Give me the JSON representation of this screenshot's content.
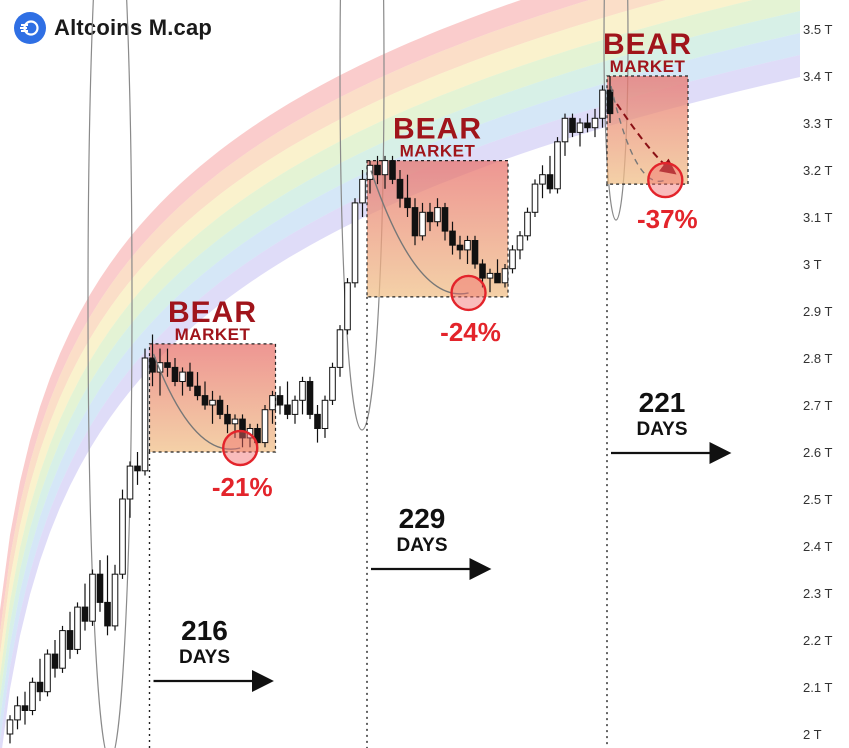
{
  "header": {
    "title": "Altcoins  M.cap",
    "icon": "altcoin-logo-icon",
    "brand_color": "#2f6fe4"
  },
  "colors": {
    "up": "#ffffff",
    "down": "#111111",
    "bear_box_top": "#e8736e",
    "bear_box_bottom": "#f0c18a",
    "bear_label": "#a0141b",
    "drawdown": "#e3242b",
    "rainbow": [
      "#f5a3a3",
      "#f7c39a",
      "#f5e7a4",
      "#cdeab1",
      "#b6e3d4",
      "#b3d4f0",
      "#c4c0f2"
    ]
  },
  "chart_data": {
    "type": "candlestick",
    "title": "",
    "y_unit": "T",
    "ylim": [
      2.0,
      3.5
    ],
    "y_ticks": [
      "3.5 T",
      "3.4 T",
      "3.3 T",
      "3.2 T",
      "3.1 T",
      "3 T",
      "2.9 T",
      "2.8 T",
      "2.7 T",
      "2.6 T",
      "2.5 T",
      "2.4 T",
      "2.3 T",
      "2.2 T",
      "2.1 T",
      "2 T"
    ],
    "candles": [
      [
        2.0,
        2.04,
        1.98,
        2.03
      ],
      [
        2.03,
        2.08,
        2.01,
        2.06
      ],
      [
        2.06,
        2.09,
        2.02,
        2.05
      ],
      [
        2.05,
        2.12,
        2.04,
        2.11
      ],
      [
        2.11,
        2.16,
        2.07,
        2.09
      ],
      [
        2.09,
        2.18,
        2.08,
        2.17
      ],
      [
        2.17,
        2.2,
        2.12,
        2.14
      ],
      [
        2.14,
        2.23,
        2.13,
        2.22
      ],
      [
        2.22,
        2.26,
        2.16,
        2.18
      ],
      [
        2.18,
        2.28,
        2.17,
        2.27
      ],
      [
        2.27,
        2.32,
        2.22,
        2.24
      ],
      [
        2.24,
        2.35,
        2.23,
        2.34
      ],
      [
        2.34,
        2.37,
        2.26,
        2.28
      ],
      [
        2.28,
        2.38,
        2.21,
        2.23
      ],
      [
        2.23,
        2.36,
        2.22,
        2.34
      ],
      [
        2.34,
        2.52,
        2.33,
        2.5
      ],
      [
        2.5,
        2.58,
        2.46,
        2.57
      ],
      [
        2.57,
        2.6,
        2.53,
        2.56
      ],
      [
        2.56,
        2.82,
        2.55,
        2.8
      ],
      [
        2.8,
        2.85,
        2.74,
        2.77
      ],
      [
        2.77,
        2.82,
        2.72,
        2.79
      ],
      [
        2.79,
        2.82,
        2.76,
        2.78
      ],
      [
        2.78,
        2.8,
        2.74,
        2.75
      ],
      [
        2.75,
        2.78,
        2.72,
        2.77
      ],
      [
        2.77,
        2.79,
        2.73,
        2.74
      ],
      [
        2.74,
        2.77,
        2.71,
        2.72
      ],
      [
        2.72,
        2.75,
        2.69,
        2.7
      ],
      [
        2.7,
        2.73,
        2.66,
        2.71
      ],
      [
        2.71,
        2.72,
        2.67,
        2.68
      ],
      [
        2.68,
        2.7,
        2.64,
        2.66
      ],
      [
        2.66,
        2.68,
        2.63,
        2.67
      ],
      [
        2.67,
        2.68,
        2.61,
        2.63
      ],
      [
        2.63,
        2.66,
        2.61,
        2.65
      ],
      [
        2.65,
        2.66,
        2.6,
        2.62
      ],
      [
        2.62,
        2.7,
        2.61,
        2.69
      ],
      [
        2.69,
        2.73,
        2.66,
        2.72
      ],
      [
        2.72,
        2.74,
        2.68,
        2.7
      ],
      [
        2.7,
        2.75,
        2.67,
        2.68
      ],
      [
        2.68,
        2.72,
        2.66,
        2.71
      ],
      [
        2.71,
        2.76,
        2.68,
        2.75
      ],
      [
        2.75,
        2.76,
        2.67,
        2.68
      ],
      [
        2.68,
        2.7,
        2.62,
        2.65
      ],
      [
        2.65,
        2.72,
        2.63,
        2.71
      ],
      [
        2.71,
        2.79,
        2.7,
        2.78
      ],
      [
        2.78,
        2.87,
        2.76,
        2.86
      ],
      [
        2.86,
        2.97,
        2.85,
        2.96
      ],
      [
        2.96,
        3.14,
        2.95,
        3.13
      ],
      [
        3.13,
        3.2,
        3.1,
        3.18
      ],
      [
        3.18,
        3.22,
        3.15,
        3.21
      ],
      [
        3.21,
        3.23,
        3.17,
        3.19
      ],
      [
        3.19,
        3.23,
        3.16,
        3.22
      ],
      [
        3.22,
        3.23,
        3.17,
        3.18
      ],
      [
        3.18,
        3.2,
        3.12,
        3.14
      ],
      [
        3.14,
        3.19,
        3.1,
        3.12
      ],
      [
        3.12,
        3.14,
        3.04,
        3.06
      ],
      [
        3.06,
        3.13,
        3.05,
        3.11
      ],
      [
        3.11,
        3.13,
        3.07,
        3.09
      ],
      [
        3.09,
        3.14,
        3.08,
        3.12
      ],
      [
        3.12,
        3.13,
        3.05,
        3.07
      ],
      [
        3.07,
        3.09,
        3.02,
        3.04
      ],
      [
        3.04,
        3.06,
        3.01,
        3.03
      ],
      [
        3.03,
        3.06,
        3.0,
        3.05
      ],
      [
        3.05,
        3.06,
        2.99,
        3.0
      ],
      [
        3.0,
        3.01,
        2.95,
        2.97
      ],
      [
        2.97,
        2.99,
        2.94,
        2.98
      ],
      [
        2.98,
        3.01,
        2.96,
        2.96
      ],
      [
        2.96,
        3.0,
        2.95,
        2.99
      ],
      [
        2.99,
        3.04,
        2.98,
        3.03
      ],
      [
        3.03,
        3.07,
        3.01,
        3.06
      ],
      [
        3.06,
        3.12,
        3.05,
        3.11
      ],
      [
        3.11,
        3.18,
        3.1,
        3.17
      ],
      [
        3.17,
        3.21,
        3.14,
        3.19
      ],
      [
        3.19,
        3.23,
        3.15,
        3.16
      ],
      [
        3.16,
        3.27,
        3.15,
        3.26
      ],
      [
        3.26,
        3.32,
        3.23,
        3.31
      ],
      [
        3.31,
        3.32,
        3.27,
        3.28
      ],
      [
        3.28,
        3.31,
        3.25,
        3.3
      ],
      [
        3.3,
        3.32,
        3.28,
        3.29
      ],
      [
        3.29,
        3.33,
        3.27,
        3.31
      ],
      [
        3.31,
        3.38,
        3.29,
        3.37
      ],
      [
        3.37,
        3.4,
        3.3,
        3.32
      ]
    ],
    "bear_markets": [
      {
        "label_top": "BEAR",
        "label_bottom": "MARKET",
        "start_index": 19,
        "end_index": 35,
        "from": 2.83,
        "to": 2.6,
        "drawdown": "-21%",
        "duration": "216",
        "duration_unit": "DAYS"
      },
      {
        "label_top": "BEAR",
        "label_bottom": "MARKET",
        "start_index": 48,
        "end_index": 66,
        "from": 3.22,
        "to": 2.93,
        "drawdown": "-24%",
        "duration": "229",
        "duration_unit": "DAYS"
      },
      {
        "label_top": "BEAR",
        "label_bottom": "MARKET",
        "start_index": 80,
        "end_index": 90,
        "from": 3.4,
        "to": 3.17,
        "drawdown": "-37%",
        "duration": "221",
        "duration_unit": "DAYS",
        "projected": true
      }
    ],
    "rainbow_bands": 7,
    "grid": false
  }
}
